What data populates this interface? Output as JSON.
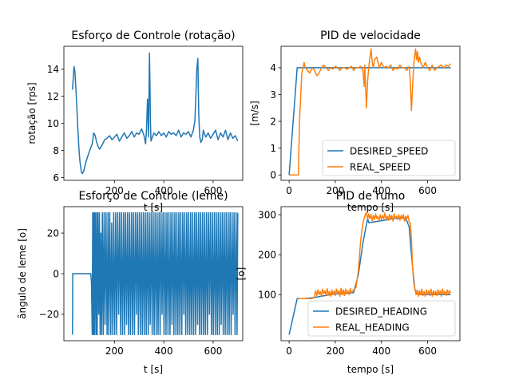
{
  "figure": {
    "background": "#ffffff"
  },
  "chart_data": [
    {
      "id": "p1",
      "type": "line",
      "title": "Esforço de Controle (rotação)",
      "xlabel": "t [s]",
      "ylabel": "rotação [rps]",
      "xlim": [
        -5,
        720
      ],
      "ylim": [
        5.8,
        15.7
      ],
      "xticks": [
        200,
        400,
        600
      ],
      "yticks": [
        6,
        8,
        10,
        12,
        14
      ],
      "grid": false,
      "series": [
        {
          "color": "#1f77b4",
          "x": [
            30,
            36,
            40,
            44,
            48,
            52,
            56,
            60,
            66,
            70,
            76,
            82,
            90,
            100,
            110,
            116,
            122,
            128,
            134,
            140,
            150,
            160,
            170,
            180,
            190,
            200,
            210,
            220,
            230,
            240,
            250,
            260,
            270,
            280,
            290,
            300,
            310,
            320,
            326,
            330,
            334,
            336,
            338,
            340,
            342,
            344,
            346,
            348,
            350,
            354,
            360,
            370,
            380,
            390,
            400,
            410,
            420,
            430,
            440,
            450,
            460,
            470,
            480,
            490,
            500,
            510,
            520,
            526,
            530,
            534,
            538,
            540,
            542,
            546,
            550,
            556,
            560,
            570,
            580,
            590,
            600,
            610,
            620,
            630,
            640,
            650,
            660,
            670,
            680,
            690,
            700
          ],
          "y": [
            12.5,
            14.2,
            13.8,
            12.5,
            11.0,
            9.5,
            8.2,
            7.2,
            6.4,
            6.3,
            6.5,
            7.0,
            7.5,
            8.0,
            8.5,
            9.3,
            9.1,
            8.6,
            8.3,
            8.1,
            8.4,
            8.8,
            8.9,
            9.1,
            8.8,
            9.0,
            9.2,
            8.7,
            9.0,
            9.3,
            8.9,
            9.1,
            9.4,
            9.0,
            9.3,
            9.2,
            9.6,
            9.1,
            8.5,
            9.5,
            11.8,
            10.8,
            9.0,
            12.0,
            15.2,
            13.0,
            10.2,
            8.7,
            8.8,
            9.0,
            9.3,
            9.1,
            9.4,
            9.1,
            9.3,
            9.0,
            9.4,
            9.2,
            9.3,
            9.1,
            9.5,
            9.0,
            9.3,
            9.2,
            9.4,
            9.0,
            9.5,
            10.2,
            12.0,
            14.0,
            14.8,
            12.5,
            10.5,
            9.0,
            8.6,
            8.8,
            9.5,
            9.0,
            9.3,
            8.9,
            9.2,
            9.5,
            8.8,
            9.3,
            9.0,
            9.5,
            8.8,
            9.3,
            8.9,
            9.1,
            8.7
          ]
        }
      ]
    },
    {
      "id": "p2",
      "type": "line",
      "title": "PID de velocidade",
      "xlabel": "tempo [s]",
      "ylabel": "[m/s]",
      "xlim": [
        -35,
        740
      ],
      "ylim": [
        -0.2,
        4.8
      ],
      "xticks": [
        0,
        200,
        400,
        600
      ],
      "yticks": [
        0,
        1,
        2,
        3,
        4
      ],
      "legend": "lower-right",
      "grid": false,
      "series": [
        {
          "name": "DESIRED_SPEED",
          "color": "#1f77b4",
          "x": [
            0,
            35,
            700
          ],
          "y": [
            0,
            4.0,
            4.0
          ]
        },
        {
          "name": "REAL_SPEED",
          "color": "#ff7f0e",
          "x": [
            0,
            30,
            40,
            45,
            55,
            60,
            65,
            70,
            80,
            90,
            100,
            110,
            120,
            130,
            140,
            150,
            160,
            170,
            180,
            190,
            200,
            210,
            220,
            230,
            240,
            250,
            260,
            270,
            280,
            290,
            300,
            310,
            320,
            325,
            328,
            330,
            335,
            340,
            345,
            350,
            355,
            360,
            365,
            370,
            380,
            390,
            400,
            410,
            420,
            430,
            440,
            450,
            460,
            470,
            480,
            490,
            500,
            510,
            520,
            525,
            530,
            535,
            540,
            545,
            548,
            552,
            556,
            560,
            565,
            570,
            580,
            590,
            600,
            610,
            620,
            630,
            640,
            650,
            660,
            670,
            680,
            690,
            700
          ],
          "y": [
            0,
            0,
            0,
            2.0,
            3.8,
            4.0,
            4.2,
            4.0,
            3.9,
            3.8,
            4.0,
            3.9,
            3.7,
            3.8,
            4.0,
            4.1,
            4.0,
            3.9,
            4.0,
            3.95,
            4.05,
            4.0,
            3.9,
            4.0,
            4.0,
            3.95,
            4.0,
            4.05,
            3.9,
            4.0,
            4.0,
            4.05,
            3.9,
            3.3,
            4.1,
            3.6,
            2.5,
            3.5,
            4.0,
            4.4,
            4.7,
            4.2,
            4.0,
            4.3,
            4.4,
            4.0,
            4.2,
            4.0,
            4.05,
            4.0,
            4.1,
            3.9,
            4.0,
            3.95,
            4.1,
            4.0,
            4.0,
            3.9,
            4.05,
            3.5,
            2.4,
            3.3,
            4.1,
            4.5,
            4.7,
            4.3,
            4.6,
            4.2,
            4.4,
            4.2,
            4.0,
            4.2,
            4.0,
            3.9,
            4.1,
            3.9,
            4.0,
            4.05,
            4.1,
            4.0,
            4.1,
            4.05,
            4.15
          ]
        }
      ]
    },
    {
      "id": "p3",
      "type": "line",
      "title": "Esforço de Controle (leme)",
      "xlabel": "t [s]",
      "ylabel": "ângulo de leme [o]",
      "xlim": [
        -5,
        720
      ],
      "ylim": [
        -33,
        33
      ],
      "xticks": [
        200,
        400,
        600
      ],
      "yticks": [
        -20,
        0,
        20
      ],
      "grid": false,
      "series": [
        {
          "color": "#1f77b4",
          "x": [
            30,
            31,
            33,
            100,
            104,
            107,
            110,
            112,
            115,
            117,
            119,
            122,
            125,
            128,
            130,
            133,
            136,
            139,
            142,
            145,
            148,
            151,
            155,
            158,
            162,
            166,
            170,
            174,
            177,
            181,
            185,
            189,
            193,
            197,
            201,
            205,
            209,
            213,
            217,
            221,
            225,
            229,
            233,
            237,
            241,
            245,
            249,
            253,
            257,
            261,
            265,
            269,
            273,
            277,
            281,
            285,
            289,
            293,
            297,
            301,
            305,
            309,
            313,
            317,
            321,
            325,
            329,
            333,
            337,
            341,
            345,
            349,
            353,
            357,
            361,
            365,
            369,
            373,
            377,
            381,
            385,
            389,
            393,
            397,
            401,
            405,
            409,
            413,
            417,
            421,
            425,
            429,
            433,
            437,
            441,
            445,
            449,
            453,
            457,
            461,
            465,
            469,
            473,
            477,
            481,
            485,
            489,
            493,
            497,
            501,
            505,
            509,
            513,
            517,
            521,
            525,
            529,
            533,
            537,
            541,
            545,
            549,
            553,
            557,
            561,
            565,
            569,
            573,
            577,
            581,
            585,
            589,
            593,
            597,
            601,
            605,
            609,
            613,
            617,
            621,
            625,
            629,
            633,
            637,
            641,
            645,
            649,
            653,
            657,
            661,
            665,
            669,
            673,
            677,
            681,
            685,
            689,
            693,
            697,
            700
          ],
          "y": [
            -30,
            0,
            0,
            0,
            0,
            -5,
            -30,
            30,
            -30,
            30,
            -30,
            30,
            -30,
            30,
            -30,
            30,
            -20,
            30,
            -30,
            20,
            -30,
            30,
            -30,
            30,
            -25,
            30,
            -30,
            30,
            -30,
            30,
            -30,
            25,
            -30,
            30,
            -30,
            30,
            -30,
            30,
            -20,
            30,
            -30,
            30,
            -30,
            30,
            -30,
            30,
            -25,
            30,
            -30,
            30,
            -30,
            30,
            -30,
            30,
            -30,
            30,
            -20,
            30,
            -30,
            30,
            -30,
            30,
            -30,
            30,
            -30,
            30,
            -30,
            30,
            -30,
            30,
            -25,
            30,
            -30,
            30,
            -30,
            30,
            -30,
            30,
            -30,
            30,
            -30,
            30,
            -20,
            30,
            -30,
            30,
            -30,
            30,
            -30,
            30,
            -30,
            30,
            -25,
            30,
            -30,
            30,
            -30,
            30,
            -30,
            30,
            -30,
            30,
            -30,
            30,
            -20,
            30,
            -30,
            30,
            -30,
            30,
            -30,
            30,
            -30,
            30,
            -30,
            30,
            -30,
            30,
            -25,
            30,
            -30,
            30,
            -30,
            30,
            -30,
            30,
            -30,
            30,
            -30,
            30,
            -20,
            30,
            -30,
            30,
            -30,
            30,
            -30,
            30,
            -30,
            30,
            -30,
            30,
            -25,
            30,
            -30,
            30,
            -30,
            30,
            -30,
            30,
            -30,
            30,
            -30,
            30,
            -20,
            30,
            -30,
            30,
            -30,
            30
          ]
        }
      ]
    },
    {
      "id": "p4",
      "type": "line",
      "title": "PID de rumo",
      "xlabel": "tempo [s]",
      "ylabel": "[o]",
      "xlim": [
        -35,
        740
      ],
      "ylim": [
        -15,
        320
      ],
      "xticks": [
        0,
        200,
        400,
        600
      ],
      "yticks": [
        100,
        200,
        300
      ],
      "legend": "lower-right",
      "grid": false,
      "series": [
        {
          "name": "DESIRED_HEADING",
          "color": "#1f77b4",
          "x": [
            0,
            35,
            60,
            100,
            150,
            200,
            250,
            280,
            300,
            320,
            335,
            340,
            345,
            400,
            450,
            500,
            510,
            520,
            530,
            540,
            545,
            550,
            560,
            600,
            650,
            700
          ],
          "y": [
            0,
            90,
            90,
            92,
            97,
            102,
            103,
            105,
            150,
            230,
            275,
            290,
            280,
            285,
            290,
            292,
            285,
            270,
            200,
            140,
            115,
            105,
            100,
            100,
            100,
            100
          ]
        },
        {
          "name": "REAL_HEADING",
          "color": "#ff7f0e",
          "x": [
            0,
            30,
            40,
            60,
            80,
            100,
            110,
            115,
            120,
            125,
            130,
            135,
            140,
            145,
            150,
            155,
            160,
            165,
            170,
            175,
            180,
            185,
            190,
            195,
            200,
            205,
            210,
            215,
            220,
            225,
            230,
            235,
            240,
            245,
            250,
            255,
            260,
            265,
            270,
            275,
            280,
            290,
            300,
            310,
            320,
            330,
            335,
            340,
            345,
            350,
            355,
            360,
            365,
            370,
            375,
            380,
            385,
            390,
            395,
            400,
            405,
            410,
            415,
            420,
            425,
            430,
            435,
            440,
            445,
            450,
            455,
            460,
            465,
            470,
            475,
            480,
            485,
            490,
            495,
            500,
            505,
            510,
            515,
            520,
            525,
            530,
            535,
            540,
            545,
            550,
            555,
            560,
            565,
            570,
            575,
            580,
            585,
            590,
            595,
            600,
            605,
            610,
            615,
            620,
            625,
            630,
            635,
            640,
            645,
            650,
            655,
            660,
            665,
            670,
            675,
            680,
            685,
            690,
            695,
            700
          ],
          "y": [
            null,
            null,
            90,
            90,
            90,
            90,
            95,
            110,
            98,
            112,
            100,
            108,
            96,
            114,
            102,
            110,
            98,
            115,
            100,
            108,
            96,
            112,
            100,
            110,
            98,
            114,
            102,
            110,
            96,
            116,
            100,
            112,
            98,
            114,
            102,
            110,
            100,
            116,
            104,
            110,
            112,
            118,
            160,
            235,
            280,
            300,
            305,
            288,
            302,
            290,
            300,
            285,
            298,
            288,
            302,
            290,
            296,
            285,
            300,
            288,
            298,
            290,
            304,
            288,
            296,
            286,
            300,
            290,
            298,
            284,
            302,
            290,
            296,
            288,
            300,
            286,
            298,
            290,
            300,
            284,
            296,
            290,
            298,
            282,
            280,
            240,
            170,
            130,
            115,
            100,
            112,
            96,
            110,
            100,
            114,
            98,
            108,
            96,
            112,
            100,
            110,
            98,
            114,
            96,
            110,
            100,
            108,
            98,
            112,
            100,
            110,
            96,
            114,
            100,
            108,
            98,
            112,
            102,
            110,
            104
          ]
        }
      ]
    }
  ]
}
